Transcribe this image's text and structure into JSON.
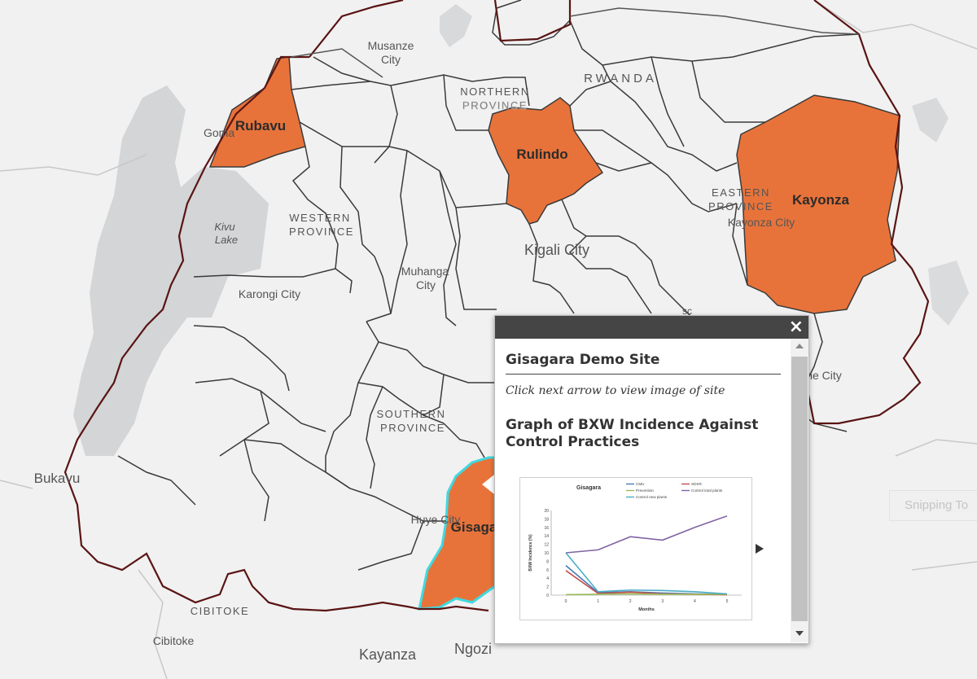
{
  "map": {
    "country_label": "RWANDA",
    "province_labels": {
      "northern": [
        "NORTHERN",
        "PROVINCE"
      ],
      "western": [
        "WESTERN",
        "PROVINCE"
      ],
      "eastern": [
        "EASTERN",
        "PROVINCE"
      ],
      "southern": [
        "SOUTHERN",
        "PROVINCE"
      ]
    },
    "lake_label": [
      "Kivu",
      "Lake"
    ],
    "city_labels": {
      "musanze": [
        "Musanze",
        "City"
      ],
      "goma": "Goma",
      "kigali": "Kigali City",
      "muhanga": [
        "Muhanga",
        "City"
      ],
      "karongi": "Karongi City",
      "kayonza_city": "Kayonza City",
      "huye": "Huye City",
      "bukavu": "Bukavu",
      "kayanza": "Kayanza",
      "ngozi": "Ngozi",
      "cibitoke_region": "CIBITOKE",
      "cibitoke": "Cibitoke",
      "partial_city": "he City",
      "partial_other": "sc"
    },
    "highlighted_districts": {
      "rubavu": "Rubavu",
      "rulindo": "Rulindo",
      "kayonza": "Kayonza",
      "gisagara": "Gisaga"
    },
    "colors": {
      "highlight": "#e8733a",
      "selected_outline": "#40d9e0",
      "boundary": "#3a3a3a",
      "country_border": "#5a1414",
      "land": "#f2f2f2",
      "water": "#d4d6d8"
    }
  },
  "popup": {
    "close_icon": "×",
    "title": "Gisagara Demo Site",
    "instruction": "Click next arrow to view image of  site",
    "graph_heading": "Graph of BXW Incidence Against Control Practices",
    "next_icon": "next-arrow-icon"
  },
  "chart_data": {
    "type": "line",
    "title": "Gisagara",
    "xlabel": "Months",
    "ylabel": "BXW Incidence (%)",
    "x": [
      0,
      1,
      2,
      3,
      4,
      5
    ],
    "ylim": [
      0,
      20
    ],
    "yticks": [
      0,
      2,
      4,
      6,
      8,
      10,
      12,
      14,
      16,
      18,
      20
    ],
    "legend_position": "top-right",
    "series": [
      {
        "name": "CMU",
        "color": "#4a7bb5",
        "values": [
          7.0,
          0.6,
          0.8,
          0.5,
          0.3,
          0.2
        ]
      },
      {
        "name": "SDSR",
        "color": "#c0504d",
        "values": [
          5.8,
          0.4,
          0.7,
          0.3,
          0.2,
          0.1
        ]
      },
      {
        "name": "Prevention",
        "color": "#9bbb59",
        "values": [
          0.1,
          0.2,
          0.3,
          0.2,
          0.2,
          0.2
        ]
      },
      {
        "name": "Control total plants",
        "color": "#8064a2",
        "values": [
          10.0,
          10.7,
          13.8,
          13.0,
          16.0,
          18.7
        ]
      },
      {
        "name": "Control new plants",
        "color": "#4bacc6",
        "values": [
          10.0,
          0.8,
          1.2,
          1.1,
          0.8,
          0.3
        ]
      }
    ]
  },
  "overlay": {
    "snipping_tool": "Snipping To"
  }
}
